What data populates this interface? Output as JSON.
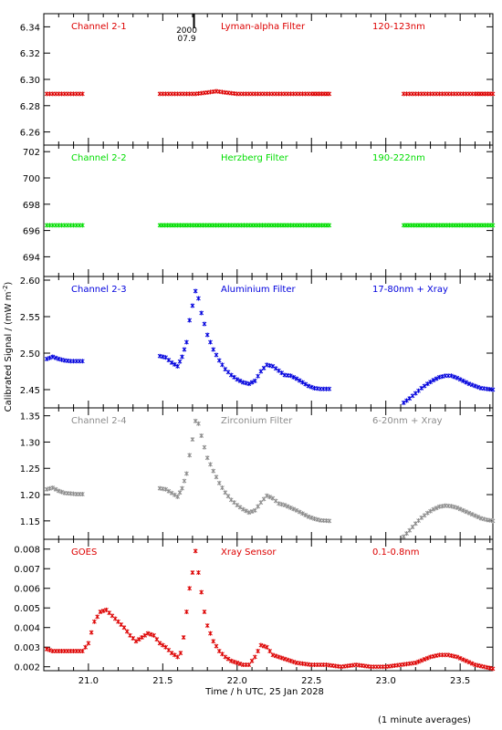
{
  "figure": {
    "ylabel": "Calibrated Signal / (mW m",
    "ylabel_sup": "-2",
    "ylabel_close": ")",
    "xlabel": "Time / h UTC, 25 Jan 2028",
    "footnote": "(1 minute averages)",
    "marker_label_1": "2000",
    "marker_label_2": "07.9"
  },
  "chart_data": [
    {
      "type": "scatter",
      "name": "Channel 2-1",
      "filter": "Lyman-alpha Filter",
      "band": "120-123nm",
      "color": "#dd0000",
      "ylim": [
        6.25,
        6.35
      ],
      "yticks": [
        "6.26",
        "6.28",
        "6.30",
        "6.32",
        "6.34"
      ],
      "segments": [
        {
          "x": [
            20.72,
            20.78,
            20.84,
            20.9,
            20.96
          ],
          "y": [
            6.289,
            6.289,
            6.289,
            6.289,
            6.289
          ]
        },
        {
          "x": [
            21.48,
            21.56,
            21.64,
            21.72,
            21.8,
            21.86,
            21.92,
            22.0,
            22.1,
            22.2,
            22.3,
            22.4,
            22.5,
            22.62
          ],
          "y": [
            6.289,
            6.289,
            6.289,
            6.289,
            6.29,
            6.291,
            6.29,
            6.289,
            6.289,
            6.289,
            6.289,
            6.289,
            6.289,
            6.289
          ]
        },
        {
          "x": [
            23.12,
            23.2,
            23.3,
            23.4,
            23.5,
            23.6,
            23.72
          ],
          "y": [
            6.289,
            6.289,
            6.289,
            6.289,
            6.289,
            6.289,
            6.289
          ]
        }
      ]
    },
    {
      "type": "scatter",
      "name": "Channel 2-2",
      "filter": "Herzberg Filter",
      "band": "190-222nm",
      "color": "#00dd00",
      "ylim": [
        692.5,
        702.5
      ],
      "yticks": [
        "694",
        "696",
        "698",
        "700",
        "702"
      ],
      "segments": [
        {
          "x": [
            20.72,
            20.78,
            20.84,
            20.9,
            20.96
          ],
          "y": [
            696.4,
            696.4,
            696.4,
            696.4,
            696.4
          ]
        },
        {
          "x": [
            21.48,
            21.6,
            21.72,
            21.84,
            21.96,
            22.1,
            22.24,
            22.36,
            22.5,
            22.62
          ],
          "y": [
            696.4,
            696.4,
            696.4,
            696.4,
            696.4,
            696.4,
            696.4,
            696.4,
            696.4,
            696.4
          ]
        },
        {
          "x": [
            23.12,
            23.24,
            23.36,
            23.48,
            23.6,
            23.72
          ],
          "y": [
            696.4,
            696.4,
            696.4,
            696.4,
            696.4,
            696.4
          ]
        }
      ]
    },
    {
      "type": "scatter",
      "name": "Channel 2-3",
      "filter": "Aluminium Filter",
      "band": "17-80nm + Xray",
      "color": "#0000dd",
      "ylim": [
        2.425,
        2.605
      ],
      "yticks": [
        "2.45",
        "2.50",
        "2.55",
        "2.60"
      ],
      "segments": [
        {
          "x": [
            20.72,
            20.76,
            20.8,
            20.84,
            20.88,
            20.92,
            20.96
          ],
          "y": [
            2.492,
            2.495,
            2.492,
            2.49,
            2.489,
            2.489,
            2.489
          ]
        },
        {
          "x": [
            21.48,
            21.52,
            21.56,
            21.6,
            21.63,
            21.66,
            21.68,
            21.7,
            21.72,
            21.74,
            21.76,
            21.78,
            21.8,
            21.84,
            21.88,
            21.92,
            21.96,
            22.0,
            22.04,
            22.08,
            22.12,
            22.16,
            22.2,
            22.24,
            22.28,
            22.32,
            22.36,
            22.4,
            22.44,
            22.48,
            22.52,
            22.56,
            22.62
          ],
          "y": [
            2.496,
            2.494,
            2.487,
            2.482,
            2.495,
            2.515,
            2.545,
            2.565,
            2.585,
            2.575,
            2.555,
            2.54,
            2.525,
            2.505,
            2.49,
            2.478,
            2.47,
            2.464,
            2.46,
            2.458,
            2.462,
            2.475,
            2.484,
            2.482,
            2.476,
            2.47,
            2.469,
            2.465,
            2.46,
            2.455,
            2.452,
            2.451,
            2.451
          ]
        },
        {
          "x": [
            23.12,
            23.16,
            23.2,
            23.24,
            23.28,
            23.32,
            23.36,
            23.4,
            23.44,
            23.48,
            23.52,
            23.56,
            23.6,
            23.64,
            23.68,
            23.72
          ],
          "y": [
            2.432,
            2.438,
            2.445,
            2.452,
            2.458,
            2.463,
            2.467,
            2.469,
            2.469,
            2.466,
            2.462,
            2.458,
            2.455,
            2.452,
            2.451,
            2.45
          ]
        }
      ]
    },
    {
      "type": "scatter",
      "name": "Channel 2-4",
      "filter": "Zirconium Filter",
      "band": "6-20nm + Xray",
      "color": "#8c8c8c",
      "ylim": [
        1.115,
        1.365
      ],
      "yticks": [
        "1.15",
        "1.20",
        "1.25",
        "1.30",
        "1.35"
      ],
      "segments": [
        {
          "x": [
            20.72,
            20.76,
            20.8,
            20.84,
            20.88,
            20.92,
            20.96
          ],
          "y": [
            1.21,
            1.213,
            1.207,
            1.203,
            1.202,
            1.201,
            1.201
          ]
        },
        {
          "x": [
            21.48,
            21.52,
            21.56,
            21.6,
            21.63,
            21.66,
            21.68,
            21.7,
            21.72,
            21.74,
            21.76,
            21.78,
            21.8,
            21.84,
            21.88,
            21.92,
            21.96,
            22.0,
            22.04,
            22.08,
            22.12,
            22.16,
            22.2,
            22.24,
            22.28,
            22.32,
            22.36,
            22.4,
            22.44,
            22.48,
            22.52,
            22.56,
            22.62
          ],
          "y": [
            1.212,
            1.21,
            1.203,
            1.196,
            1.212,
            1.24,
            1.275,
            1.305,
            1.34,
            1.335,
            1.312,
            1.29,
            1.27,
            1.245,
            1.222,
            1.204,
            1.19,
            1.18,
            1.172,
            1.166,
            1.17,
            1.185,
            1.198,
            1.193,
            1.183,
            1.18,
            1.175,
            1.17,
            1.164,
            1.158,
            1.154,
            1.151,
            1.15
          ]
        },
        {
          "x": [
            23.12,
            23.16,
            23.2,
            23.24,
            23.28,
            23.32,
            23.36,
            23.4,
            23.44,
            23.48,
            23.52,
            23.56,
            23.6,
            23.64,
            23.68,
            23.72
          ],
          "y": [
            1.12,
            1.132,
            1.145,
            1.156,
            1.165,
            1.172,
            1.177,
            1.179,
            1.178,
            1.175,
            1.17,
            1.165,
            1.16,
            1.155,
            1.152,
            1.15
          ]
        }
      ]
    },
    {
      "type": "scatter",
      "name": "GOES",
      "filter": "Xray Sensor",
      "band": "0.1-0.8nm",
      "color": "#dd0000",
      "ylim": [
        0.0018,
        0.0085
      ],
      "yticks": [
        "0.002",
        "0.003",
        "0.004",
        "0.005",
        "0.006",
        "0.007",
        "0.008"
      ],
      "segments": [
        {
          "x": [
            20.72,
            20.76,
            20.8,
            20.84,
            20.88,
            20.92,
            20.96,
            21.0,
            21.04,
            21.08,
            21.12,
            21.16,
            21.2,
            21.24,
            21.28,
            21.32,
            21.36,
            21.4,
            21.44,
            21.48,
            21.52,
            21.56,
            21.6,
            21.62,
            21.64,
            21.66,
            21.68,
            21.7,
            21.72,
            21.74,
            21.76,
            21.78,
            21.8,
            21.84,
            21.88,
            21.92,
            21.96,
            22.0,
            22.04,
            22.08,
            22.12,
            22.16,
            22.2,
            22.24,
            22.28,
            22.32,
            22.36,
            22.4,
            22.5,
            22.6,
            22.7,
            22.8,
            22.9,
            23.0,
            23.1,
            23.2,
            23.3,
            23.36,
            23.42,
            23.48,
            23.54,
            23.6,
            23.66,
            23.72
          ],
          "y": [
            0.0029,
            0.0028,
            0.0028,
            0.0028,
            0.0028,
            0.0028,
            0.0028,
            0.0032,
            0.0043,
            0.0048,
            0.0049,
            0.0046,
            0.0043,
            0.004,
            0.0036,
            0.0033,
            0.0035,
            0.0037,
            0.0036,
            0.0032,
            0.003,
            0.0027,
            0.0025,
            0.0027,
            0.0035,
            0.0048,
            0.006,
            0.0068,
            0.0079,
            0.0068,
            0.0058,
            0.0048,
            0.0041,
            0.0033,
            0.0028,
            0.0025,
            0.0023,
            0.0022,
            0.0021,
            0.0021,
            0.0025,
            0.0031,
            0.003,
            0.0026,
            0.0025,
            0.0024,
            0.0023,
            0.0022,
            0.0021,
            0.0021,
            0.002,
            0.0021,
            0.002,
            0.002,
            0.0021,
            0.0022,
            0.0025,
            0.0026,
            0.0026,
            0.0025,
            0.0023,
            0.0021,
            0.002,
            0.0019
          ]
        }
      ]
    }
  ],
  "xaxis": {
    "xlim": [
      20.7,
      23.72
    ],
    "ticks": [
      "21.0",
      "21.5",
      "22.0",
      "22.5",
      "23.0",
      "23.5"
    ],
    "marker_x": 21.71
  }
}
